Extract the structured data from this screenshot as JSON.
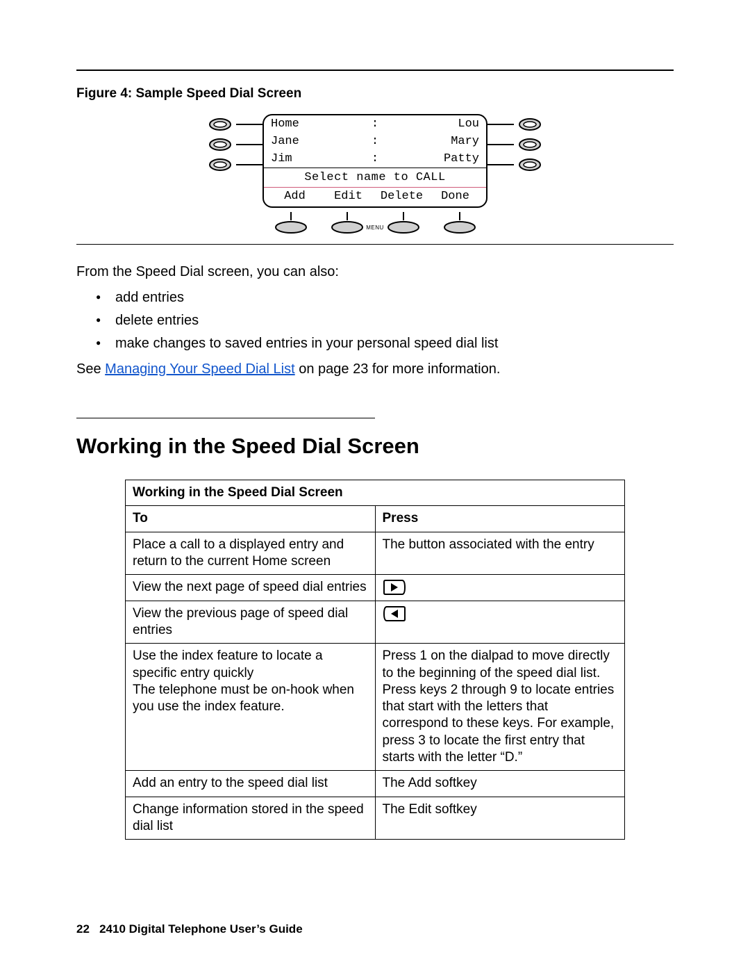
{
  "figure": {
    "caption": "Figure 4: Sample Speed Dial Screen",
    "rows": [
      {
        "left": "Home",
        "right": "Lou"
      },
      {
        "left": "Jane",
        "right": "Mary"
      },
      {
        "left": "Jim",
        "right": "Patty"
      }
    ],
    "separator": ":",
    "prompt": "Select name to CALL",
    "softkeys": [
      "Add",
      "Edit",
      "Delete",
      "Done"
    ],
    "menu_label": "MENU",
    "colors": {
      "border": "#000000",
      "prompt_underline": "#cf5b79",
      "button_fill": "#d0d0d0",
      "button_stroke": "#000000"
    }
  },
  "intro": {
    "lead": "From the Speed Dial screen, you can also:",
    "bullets": [
      "add entries",
      "delete entries",
      "make changes to saved entries in your personal speed dial list"
    ],
    "see_prefix": "See ",
    "see_link": "Managing Your Speed Dial List",
    "see_suffix": " on page 23 for more information."
  },
  "section_title": "Working in the Speed Dial Screen",
  "table": {
    "title": "Working in the Speed Dial Screen",
    "columns": [
      "To",
      "Press"
    ],
    "rows": [
      {
        "to": "Place a call to a displayed entry and return to the current Home screen",
        "press_text": "The button associated with the entry",
        "press_icon": null
      },
      {
        "to": "View the next page of speed dial entries",
        "press_text": "",
        "press_icon": "right"
      },
      {
        "to": "View the previous page of speed dial entries",
        "press_text": "",
        "press_icon": "left"
      },
      {
        "to": "Use the index feature to locate a specific entry quickly\nThe telephone must be on-hook when you use the index feature.",
        "press_text": "Press 1 on the dialpad to move directly to the beginning of the speed dial list.\nPress keys 2 through 9 to locate entries that start with the letters that correspond to these keys. For example, press 3 to locate the first entry that starts with the letter “D.”",
        "press_icon": null
      },
      {
        "to": "Add an entry to the speed dial list",
        "press_text": "The Add softkey",
        "press_icon": null
      },
      {
        "to": "Change information stored in the speed dial list",
        "press_text": "The Edit softkey",
        "press_icon": null
      }
    ]
  },
  "footer": {
    "page": "22",
    "doc": "2410 Digital Telephone User’s Guide"
  }
}
